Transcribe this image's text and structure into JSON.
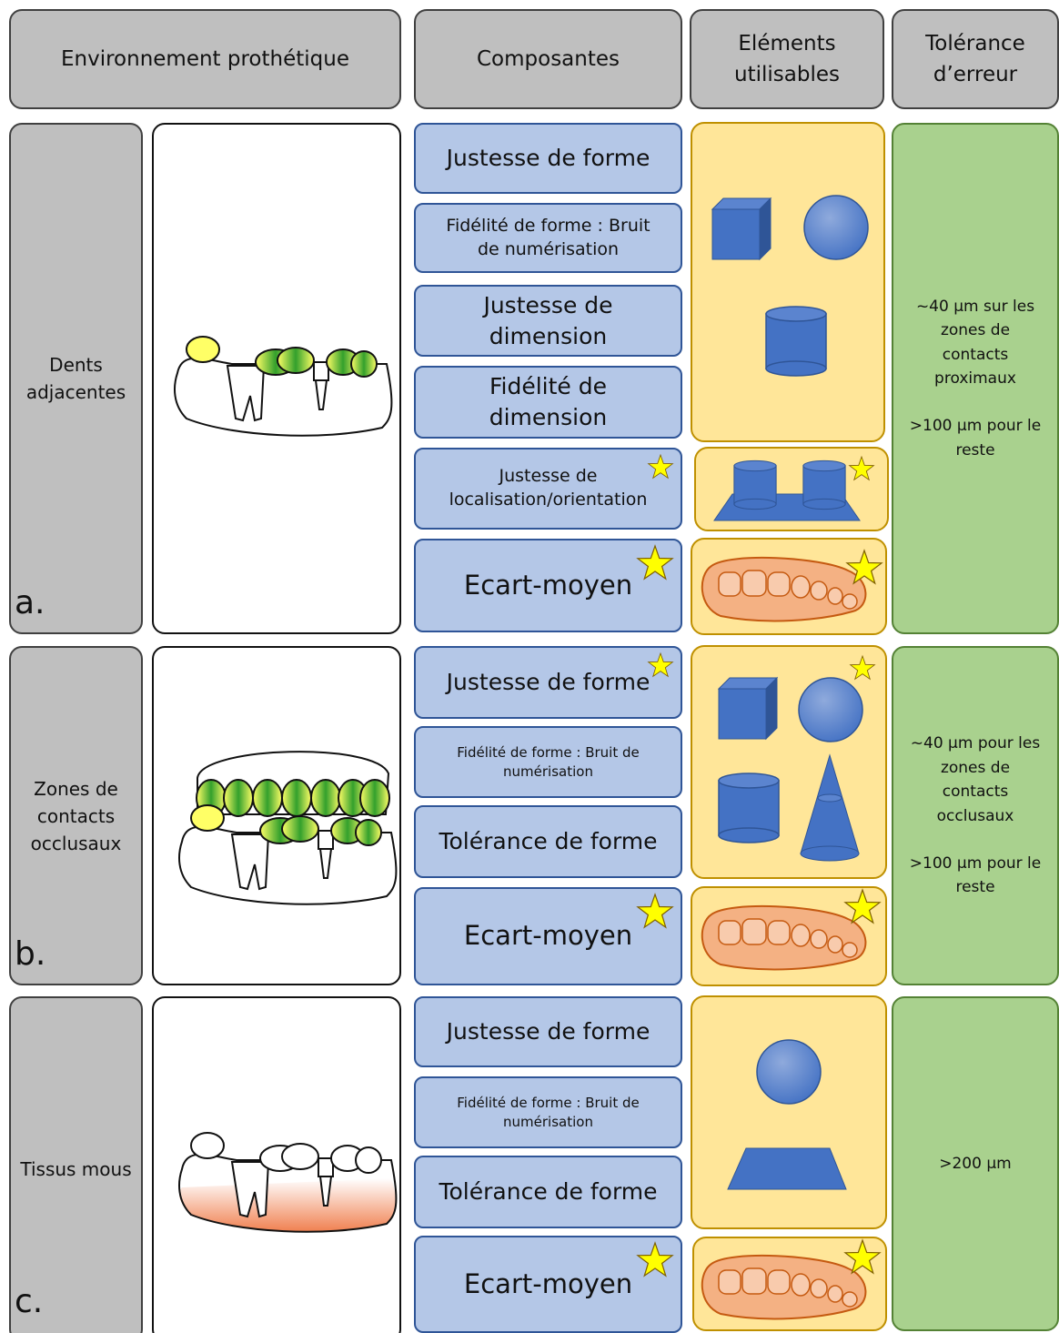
{
  "header": {
    "environment": "Environnement prothétique",
    "components": "Composantes",
    "elements": "Eléments utilisables",
    "tolerance": "Tolérance d’erreur"
  },
  "rows": [
    {
      "label": "a.",
      "environment": "Dents adjacentes",
      "components": [
        "Justesse de forme",
        "Fidélité de forme : Bruit de numérisation",
        "Justesse de dimension",
        "Fidélité de dimension",
        "Justesse de localisation/orientation",
        "Ecart-moyen"
      ],
      "tolerance": [
        "~40 µm sur les zones de contacts proximaux",
        ">100 µm pour le reste"
      ]
    },
    {
      "label": "b.",
      "environment": "Zones de contacts occlusaux",
      "components": [
        "Justesse de forme",
        "Fidélité de forme : Bruit de numérisation",
        "Tolérance de forme",
        "Ecart-moyen"
      ],
      "tolerance": [
        "~40 µm pour les zones de contacts occlusaux",
        ">100 µm pour le reste"
      ]
    },
    {
      "label": "c.",
      "environment": "Tissus mous",
      "components": [
        "Justesse de forme",
        "Fidélité de forme : Bruit de numérisation",
        "Tolérance de forme",
        "Ecart-moyen"
      ],
      "tolerance": [
        ">200 µm"
      ]
    }
  ]
}
